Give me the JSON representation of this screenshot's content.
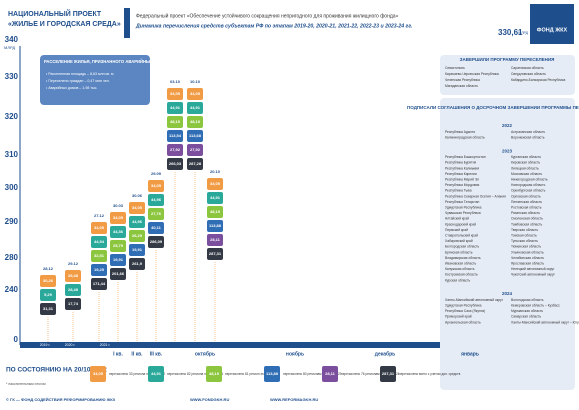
{
  "header": {
    "project": "НАЦИОНАЛЬНЫЙ ПРОЕКТ",
    "project_name": "«ЖИЛЬЕ И ГОРОДСКАЯ СРЕДА»",
    "federal": "Федеральный проект «Обеспечение устойчивого сокращения непригодного для проживания жилищного фонда»",
    "subtitle": "Динамика перечисления средств субъектам РФ по этапам 2019-20, 2020-21, 2021-22, 2022-23 и 2023-24 гг.",
    "total": "330,61",
    "total_unit": "МЛРД",
    "logo": "ФОНД ЖКХ"
  },
  "axis": {
    "unit": "МЛРД",
    "ticks": [
      "340",
      "330",
      "320",
      "310",
      "300",
      "290",
      "280",
      "240",
      "0"
    ]
  },
  "info": {
    "title": "РАССЕЛЕНИЕ ЖИЛЬЯ, ПРИЗНАННОГО АВАРИЙНЫМ с 01.01.2017 по 01.01.2022",
    "items": [
      "• Расселенная площадь – 8,63 млн кв. м",
      "• Переселено граждан – 0,47 млн чел.",
      "• Аварийных домов – 1,98 тыс."
    ]
  },
  "columns": [
    {
      "date": "28.12",
      "values": [
        "30,26",
        "5,29",
        "31,31"
      ]
    },
    {
      "date": "29.12",
      "values": [
        "29,48",
        "28,48",
        "17,74"
      ]
    },
    {
      "date": "27.12",
      "values": [
        "34,05",
        "44,94",
        "32,51",
        "19,25",
        "171,44"
      ]
    },
    {
      "date": "30.03",
      "values": [
        "34,05",
        "44,36",
        "25,79",
        "19,91",
        "201,66"
      ]
    },
    {
      "date": "30.06",
      "values": [
        "34,05",
        "44,96",
        "26,29",
        "19,91",
        "261,9"
      ]
    },
    {
      "date": "29.09",
      "values": [
        "34,05",
        "44,96",
        "27,76",
        "40,11",
        "286,09"
      ]
    },
    {
      "date": "03.10",
      "values": [
        "34,05",
        "44,91",
        "48,19",
        "113,54",
        "27,92",
        "266,03"
      ]
    },
    {
      "date": "10.10",
      "values": [
        "34,05",
        "44,91",
        "48,19",
        "113,68",
        "27,92",
        "287,28"
      ]
    },
    {
      "date": "20.10",
      "values": [
        "34,05",
        "44,91",
        "48,19",
        "113,88",
        "28,11",
        "287,31"
      ]
    }
  ],
  "timeline": {
    "years": [
      "2019 г.",
      "2020 г.",
      "2021 г."
    ],
    "periods": [
      "I кв.",
      "II кв.",
      "III кв.",
      "октябрь",
      "ноябрь",
      "декабрь",
      "январь"
    ]
  },
  "status": {
    "label": "ПО СОСТОЯНИЮ НА 20/10/2022",
    "note": "* накопительным итогом"
  },
  "legend": [
    {
      "value": "34,05",
      "text": "перечислено 33 региона этап 2019-20"
    },
    {
      "value": "44,91",
      "text": "перечислено 82 региона этап 2020-21"
    },
    {
      "value": "48,19",
      "text": "перечислено 81 регион этап 2021-22"
    },
    {
      "value": "113,88",
      "text": "перечислено 80 регионам этап 2022-23"
    },
    {
      "value": "28,11",
      "text": "перечислено 76 регионам этап 2023-24"
    },
    {
      "value": "287,31",
      "text": "перечислено всего с учетом доп. средств"
    }
  ],
  "completed": {
    "title": "ЗАВЕРШИЛИ ПРОГРАММУ ПЕРЕСЕЛЕНИЯ",
    "regions": [
      "Севастополь",
      "Карачаево-Черкесская Республика",
      "Чеченская Республика",
      "Магаданская область",
      "Саратовская область",
      "Свердловская область",
      "Кабардино-Балкарская Республика"
    ]
  },
  "agreements": {
    "title": "ПОДПИСАЛИ СОГЛАШЕНИЯ О ДОСРОЧНОМ ЗАВЕРШЕНИИ ПРОГРАММЫ ПЕРЕСЕЛЕНИЯ",
    "groups": [
      {
        "year": "2022",
        "regions": [
          "Республика Адыгея",
          "Калининградская область",
          "Астраханская область",
          "Воронежская область"
        ]
      },
      {
        "year": "2023",
        "regions": [
          "Республика Башкортостан",
          "Республика Бурятия",
          "Республика Калмыкия",
          "Республика Карелия",
          "Республика Марий Эл",
          "Республика Мордовия",
          "Республика Тыва",
          "Республика Северная Осетия – Алания",
          "Республика Татарстан",
          "Удмуртская Республика",
          "Чувашская Республика",
          "Алтайский край",
          "Краснодарский край",
          "Пермский край",
          "Ставропольский край",
          "Хабаровский край",
          "Белгородская область",
          "Брянская область",
          "Владимирская область",
          "Ивановская область",
          "Калужская область",
          "Костромская область",
          "Курская область",
          "Курганская область",
          "Кировская область",
          "Липецкая область",
          "Московская область",
          "Нижегородская область",
          "Новгородская область",
          "Оренбургская область",
          "Орловская область",
          "Пензенская область",
          "Ростовская область",
          "Рязанская область",
          "Смоленская область",
          "Тамбовская область",
          "Тверская область",
          "Томская область",
          "Тульская область",
          "Тюменская область",
          "Ульяновская область",
          "Челябинская область",
          "Ярославская область",
          "Ненецкий автономный округ",
          "Чукотский автономный округ"
        ]
      },
      {
        "year": "2024",
        "regions": [
          "Ханты-Мансийский автономный округ",
          "Удмуртская Республика",
          "Республика Саха (Якутия)",
          "Приморский край",
          "Архангельская область",
          "Вологодская область",
          "Кемеровская область – Кузбасс",
          "Мурманская область",
          "Самарская область",
          "Ханты-Мансийский автономный округ – Югра"
        ]
      }
    ]
  },
  "footer": {
    "copyright": "© ГК — ФОНД СОДЕЙСТВИЯ РЕФОРМИРОВАНИЮ ЖКХ",
    "site1": "WWW.FONDGKH.RU",
    "site2": "WWW.REFORMAGKH.RU"
  }
}
